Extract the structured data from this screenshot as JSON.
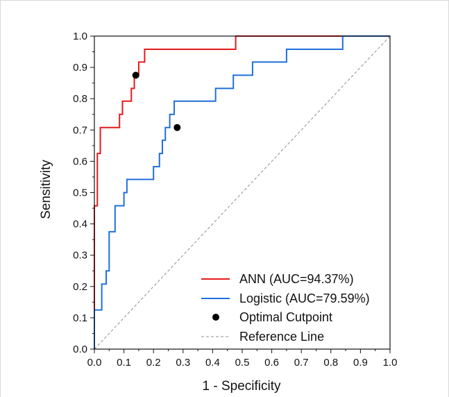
{
  "chart_data": {
    "type": "line",
    "xlabel": "1 - Specificity",
    "ylabel": "Sensitivity",
    "xlim": [
      0,
      1
    ],
    "ylim": [
      0,
      1
    ],
    "grid": false,
    "legend_position": "bottom-right",
    "x_ticks": [
      "0.0",
      "0.1",
      "0.2",
      "0.3",
      "0.4",
      "0.5",
      "0.6",
      "0.7",
      "0.8",
      "0.9",
      "1.0"
    ],
    "y_ticks": [
      "0.0",
      "0.1",
      "0.2",
      "0.3",
      "0.4",
      "0.5",
      "0.6",
      "0.7",
      "0.8",
      "0.9",
      "1.0"
    ],
    "series": [
      {
        "name": "ANN (AUC=94.37%)",
        "color": "#e8191a",
        "points": [
          [
            0,
            0
          ],
          [
            0,
            0.042
          ],
          [
            0,
            0.125
          ],
          [
            0,
            0.25
          ],
          [
            0,
            0.375
          ],
          [
            0,
            0.458
          ],
          [
            0.01,
            0.458
          ],
          [
            0.01,
            0.625
          ],
          [
            0.02,
            0.625
          ],
          [
            0.02,
            0.708
          ],
          [
            0.085,
            0.708
          ],
          [
            0.085,
            0.75
          ],
          [
            0.095,
            0.75
          ],
          [
            0.095,
            0.792
          ],
          [
            0.125,
            0.792
          ],
          [
            0.125,
            0.833
          ],
          [
            0.135,
            0.833
          ],
          [
            0.135,
            0.875
          ],
          [
            0.15,
            0.875
          ],
          [
            0.15,
            0.917
          ],
          [
            0.17,
            0.917
          ],
          [
            0.17,
            0.958
          ],
          [
            0.478,
            0.958
          ],
          [
            0.478,
            1.0
          ],
          [
            1.0,
            1.0
          ]
        ]
      },
      {
        "name": "Logistic (AUC=79.59%)",
        "color": "#1f6fdb",
        "points": [
          [
            0,
            0
          ],
          [
            0,
            0.125
          ],
          [
            0.025,
            0.125
          ],
          [
            0.025,
            0.208
          ],
          [
            0.04,
            0.208
          ],
          [
            0.04,
            0.25
          ],
          [
            0.05,
            0.25
          ],
          [
            0.05,
            0.375
          ],
          [
            0.07,
            0.375
          ],
          [
            0.07,
            0.458
          ],
          [
            0.1,
            0.458
          ],
          [
            0.1,
            0.5
          ],
          [
            0.11,
            0.5
          ],
          [
            0.11,
            0.542
          ],
          [
            0.2,
            0.542
          ],
          [
            0.2,
            0.583
          ],
          [
            0.22,
            0.583
          ],
          [
            0.22,
            0.625
          ],
          [
            0.23,
            0.625
          ],
          [
            0.23,
            0.667
          ],
          [
            0.24,
            0.667
          ],
          [
            0.24,
            0.708
          ],
          [
            0.255,
            0.708
          ],
          [
            0.255,
            0.75
          ],
          [
            0.27,
            0.75
          ],
          [
            0.27,
            0.792
          ],
          [
            0.41,
            0.792
          ],
          [
            0.41,
            0.833
          ],
          [
            0.47,
            0.833
          ],
          [
            0.47,
            0.875
          ],
          [
            0.535,
            0.875
          ],
          [
            0.535,
            0.917
          ],
          [
            0.65,
            0.917
          ],
          [
            0.65,
            0.958
          ],
          [
            0.84,
            0.958
          ],
          [
            0.84,
            1.0
          ],
          [
            1.0,
            1.0
          ]
        ]
      }
    ],
    "optimal_cutpoints": {
      "name": "Optimal Cutpoint",
      "color": "#000000",
      "points": [
        [
          0.14,
          0.875
        ],
        [
          0.28,
          0.708
        ]
      ]
    },
    "reference_line": {
      "name": "Reference Line",
      "color": "#8c8c8c",
      "points": [
        [
          0,
          0
        ],
        [
          1,
          1
        ]
      ]
    }
  }
}
